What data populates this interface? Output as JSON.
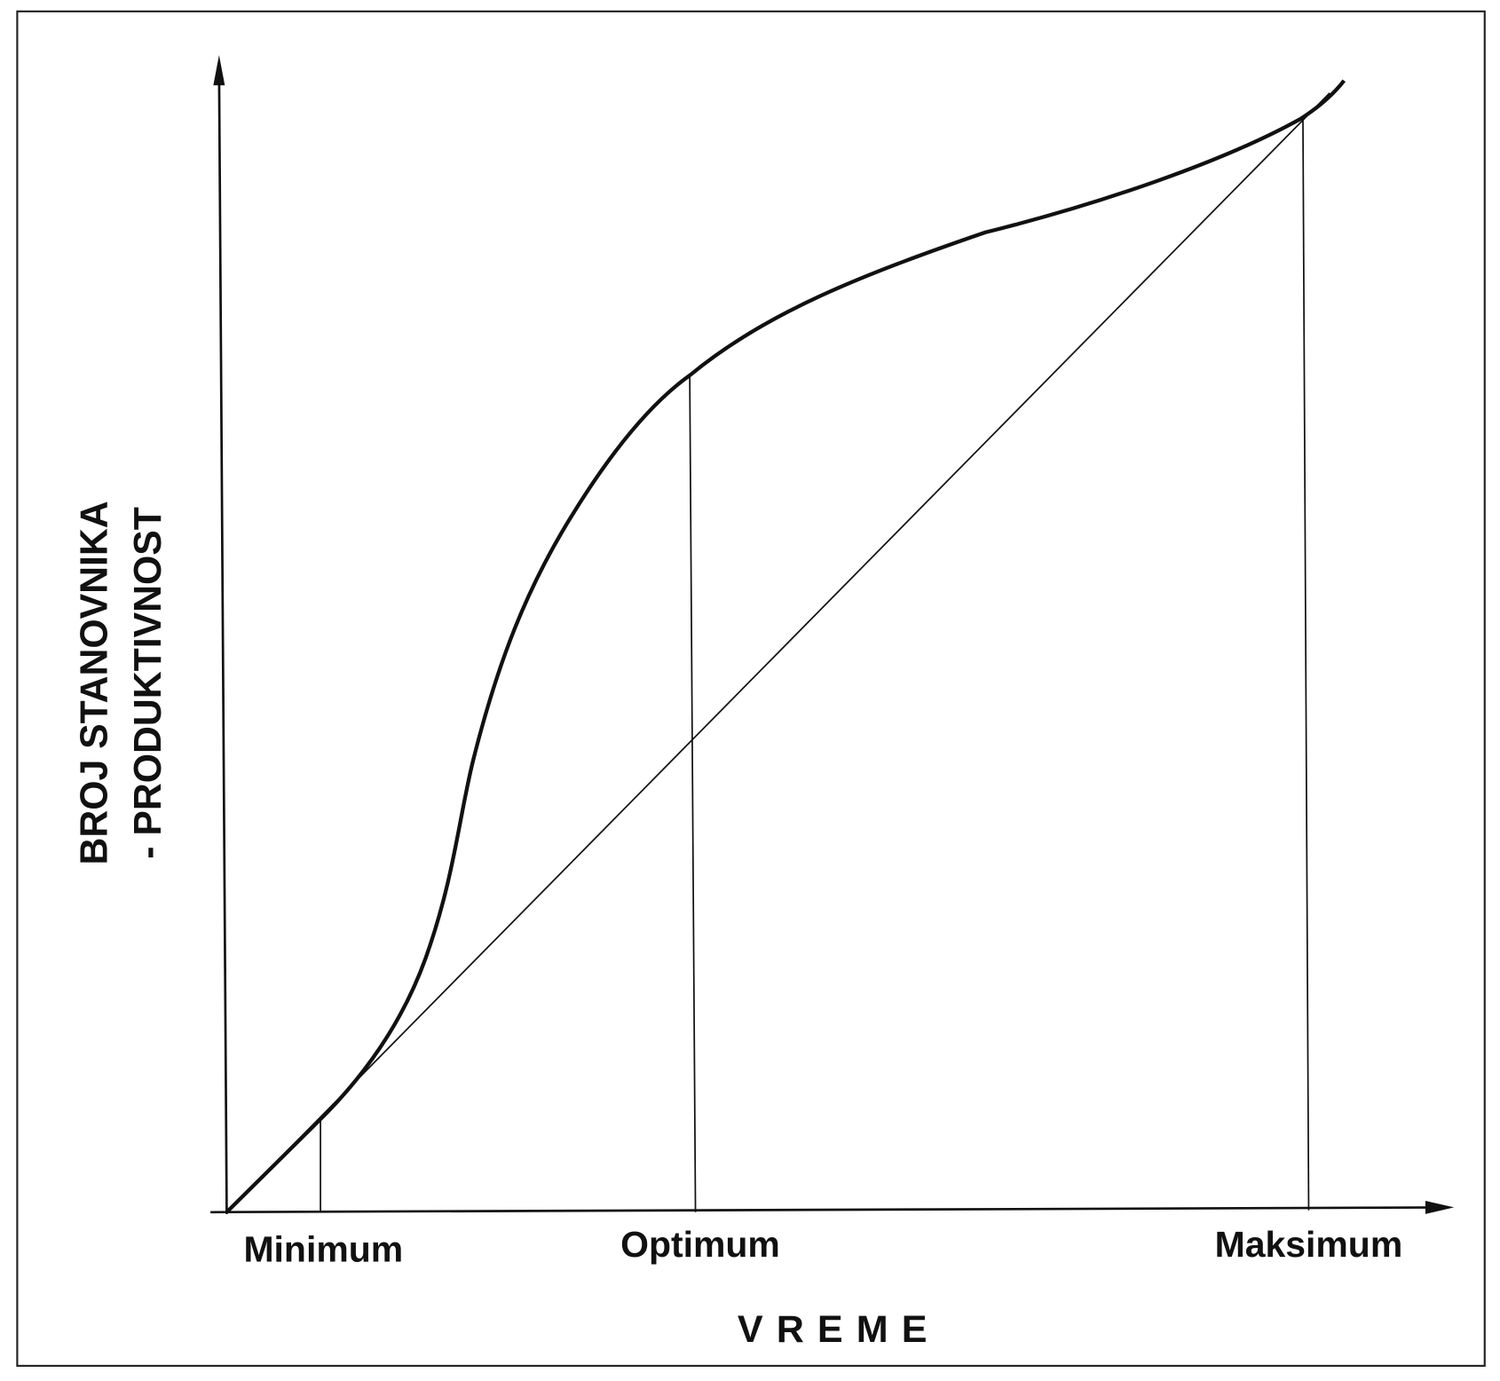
{
  "y_axis_label": [
    "BROJ STANOVNIKA",
    "- PRODUKTIVNOST"
  ],
  "x_axis_label": "VREME",
  "points": [
    "Minimum",
    "Optimum",
    "Maksimum"
  ]
}
